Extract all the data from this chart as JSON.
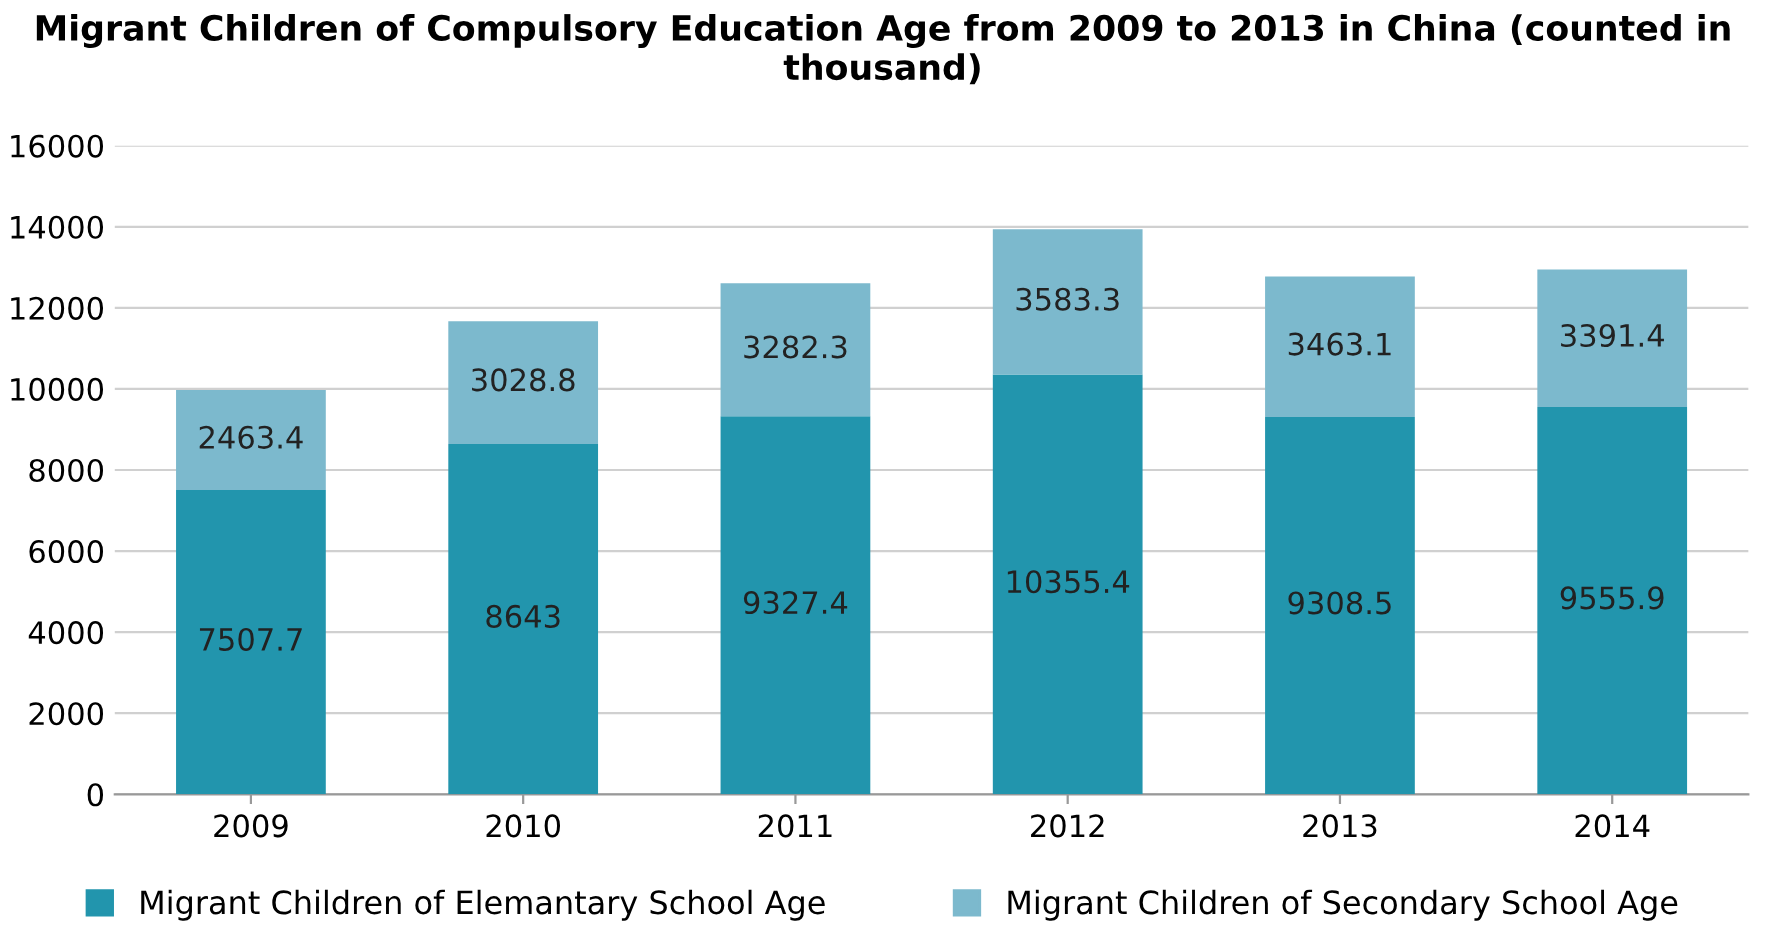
{
  "chart_data": {
    "type": "bar",
    "title": "Migrant Children of Compulsory Education Age from 2009 to 2013 in China (counted in thousand)",
    "categories": [
      "2009",
      "2010",
      "2011",
      "2012",
      "2013",
      "2014"
    ],
    "stacked": true,
    "series": [
      {
        "name": "Migrant Children of Elemantary School Age",
        "color": "#2295ad",
        "values": [
          7507.7,
          8643,
          9327.4,
          10355.4,
          9308.5,
          9555.9
        ]
      },
      {
        "name": "Migrant Children of Secondary School Age",
        "color": "#7cb9cd",
        "values": [
          2463.4,
          3028.8,
          3282.3,
          3583.3,
          3463.1,
          3391.4
        ]
      }
    ],
    "ylim": [
      0,
      16000
    ],
    "yticks": [
      0,
      2000,
      4000,
      6000,
      8000,
      10000,
      12000,
      14000,
      16000
    ],
    "grid": "y",
    "legend": "bottom",
    "data_labels": true
  }
}
